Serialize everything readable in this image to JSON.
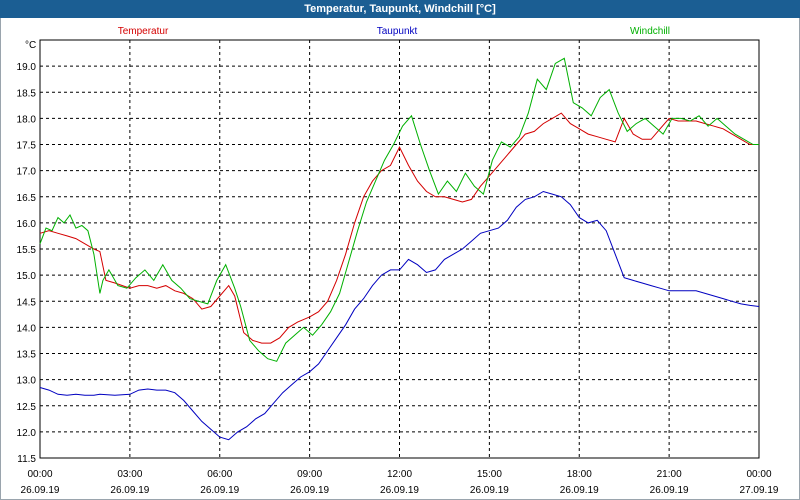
{
  "window": {
    "title": "Temperatur, Taupunkt, Windchill [°C]"
  },
  "chart_data": {
    "type": "line",
    "title": "Temperatur, Taupunkt, Windchill [°C]",
    "ylabel": "°C",
    "xlabel": "",
    "ylim": [
      11.5,
      19.5
    ],
    "xlim": [
      0,
      24
    ],
    "grid": true,
    "x_ticks": [
      {
        "time": "00:00",
        "date": "26.09.19"
      },
      {
        "time": "03:00",
        "date": "26.09.19"
      },
      {
        "time": "06:00",
        "date": "26.09.19"
      },
      {
        "time": "09:00",
        "date": "26.09.19"
      },
      {
        "time": "12:00",
        "date": "26.09.19"
      },
      {
        "time": "15:00",
        "date": "26.09.19"
      },
      {
        "time": "18:00",
        "date": "26.09.19"
      },
      {
        "time": "21:00",
        "date": "26.09.19"
      },
      {
        "time": "00:00",
        "date": "27.09.19"
      }
    ],
    "y_ticks": [
      "19.0",
      "18.5",
      "18.0",
      "17.5",
      "17.0",
      "16.5",
      "16.0",
      "15.5",
      "15.0",
      "14.5",
      "14.0",
      "13.5",
      "13.0",
      "12.5",
      "12.0",
      "11.5"
    ],
    "series": [
      {
        "name": "Temperatur",
        "color": "#d40000",
        "x": [
          0,
          0.3,
          0.6,
          0.9,
          1.2,
          1.5,
          1.8,
          2.0,
          2.2,
          2.5,
          3.0,
          3.3,
          3.6,
          3.9,
          4.2,
          4.5,
          4.8,
          5.1,
          5.4,
          5.7,
          6.0,
          6.3,
          6.5,
          6.8,
          7.1,
          7.4,
          7.7,
          8.0,
          8.3,
          8.6,
          9.0,
          9.3,
          9.6,
          9.9,
          10.2,
          10.5,
          10.8,
          11.1,
          11.4,
          11.7,
          12.0,
          12.3,
          12.6,
          12.9,
          13.2,
          13.5,
          13.8,
          14.1,
          14.4,
          14.7,
          15.0,
          15.3,
          15.6,
          15.9,
          16.2,
          16.5,
          16.8,
          17.1,
          17.4,
          17.7,
          18.0,
          18.3,
          18.6,
          18.9,
          19.2,
          19.5,
          19.8,
          20.1,
          20.4,
          20.7,
          21.0,
          21.3,
          21.6,
          21.9,
          22.2,
          22.5,
          22.8,
          23.1,
          23.4,
          23.7,
          24.0
        ],
        "y": [
          15.8,
          15.85,
          15.8,
          15.75,
          15.7,
          15.6,
          15.5,
          15.45,
          14.9,
          14.85,
          14.75,
          14.8,
          14.8,
          14.75,
          14.8,
          14.7,
          14.65,
          14.55,
          14.35,
          14.4,
          14.6,
          14.8,
          14.6,
          13.9,
          13.75,
          13.7,
          13.7,
          13.8,
          14.0,
          14.1,
          14.2,
          14.3,
          14.5,
          14.9,
          15.4,
          16.0,
          16.5,
          16.8,
          17.0,
          17.1,
          17.45,
          17.1,
          16.8,
          16.6,
          16.5,
          16.5,
          16.45,
          16.4,
          16.45,
          16.7,
          16.9,
          17.1,
          17.3,
          17.5,
          17.7,
          17.75,
          17.9,
          18.0,
          18.1,
          17.9,
          17.8,
          17.7,
          17.65,
          17.6,
          17.55,
          18.0,
          17.7,
          17.6,
          17.6,
          17.8,
          18.0,
          17.95,
          17.95,
          17.95,
          17.9,
          17.85,
          17.8,
          17.7,
          17.6,
          17.5,
          17.5
        ]
      },
      {
        "name": "Taupunkt",
        "color": "#0000c0",
        "x": [
          0,
          0.3,
          0.6,
          0.9,
          1.2,
          1.5,
          1.8,
          2.0,
          2.5,
          3.0,
          3.3,
          3.6,
          3.9,
          4.2,
          4.5,
          4.8,
          5.1,
          5.4,
          5.7,
          6.0,
          6.3,
          6.6,
          6.9,
          7.2,
          7.5,
          7.8,
          8.1,
          8.4,
          8.7,
          9.0,
          9.3,
          9.6,
          9.9,
          10.2,
          10.5,
          10.8,
          11.1,
          11.4,
          11.7,
          12.0,
          12.3,
          12.6,
          12.9,
          13.2,
          13.5,
          13.8,
          14.1,
          14.4,
          14.7,
          15.0,
          15.3,
          15.6,
          15.9,
          16.2,
          16.5,
          16.8,
          17.1,
          17.4,
          17.7,
          18.0,
          18.3,
          18.6,
          18.9,
          19.2,
          19.5,
          19.8,
          20.1,
          20.4,
          20.7,
          21.0,
          21.3,
          21.6,
          21.9,
          22.2,
          22.5,
          22.8,
          23.1,
          23.4,
          23.7,
          24.0
        ],
        "y": [
          12.85,
          12.8,
          12.72,
          12.7,
          12.72,
          12.7,
          12.7,
          12.72,
          12.7,
          12.72,
          12.8,
          12.82,
          12.8,
          12.8,
          12.75,
          12.6,
          12.4,
          12.2,
          12.05,
          11.9,
          11.85,
          12.0,
          12.1,
          12.25,
          12.35,
          12.55,
          12.75,
          12.9,
          13.05,
          13.15,
          13.3,
          13.55,
          13.8,
          14.05,
          14.35,
          14.55,
          14.8,
          15.0,
          15.1,
          15.1,
          15.3,
          15.2,
          15.05,
          15.1,
          15.3,
          15.4,
          15.5,
          15.65,
          15.8,
          15.85,
          15.9,
          16.05,
          16.3,
          16.45,
          16.5,
          16.6,
          16.55,
          16.5,
          16.35,
          16.1,
          16.0,
          16.05,
          15.85,
          15.4,
          14.95,
          14.9,
          14.85,
          14.8,
          14.75,
          14.7,
          14.7,
          14.7,
          14.7,
          14.65,
          14.6,
          14.55,
          14.5,
          14.45,
          14.42,
          14.4
        ]
      },
      {
        "name": "Windchill",
        "color": "#00b000",
        "x": [
          0,
          0.2,
          0.4,
          0.6,
          0.8,
          1.0,
          1.2,
          1.4,
          1.6,
          1.8,
          2.0,
          2.1,
          2.3,
          2.6,
          2.9,
          3.2,
          3.5,
          3.8,
          4.1,
          4.4,
          4.7,
          5.0,
          5.3,
          5.6,
          5.9,
          6.2,
          6.5,
          6.7,
          7.0,
          7.3,
          7.6,
          7.9,
          8.2,
          8.5,
          8.8,
          9.1,
          9.4,
          9.7,
          10.0,
          10.3,
          10.6,
          10.9,
          11.2,
          11.5,
          11.8,
          12.1,
          12.4,
          12.7,
          13.0,
          13.3,
          13.6,
          13.9,
          14.2,
          14.5,
          14.8,
          15.1,
          15.4,
          15.7,
          16.0,
          16.3,
          16.6,
          16.9,
          17.2,
          17.5,
          17.8,
          18.1,
          18.4,
          18.7,
          19.0,
          19.3,
          19.6,
          19.9,
          20.2,
          20.5,
          20.8,
          21.1,
          21.4,
          21.7,
          22.0,
          22.3,
          22.6,
          22.9,
          23.2,
          23.5,
          23.8,
          24.0
        ],
        "y": [
          15.6,
          15.9,
          15.85,
          16.1,
          16.0,
          16.15,
          15.9,
          15.95,
          15.85,
          15.4,
          14.65,
          14.9,
          15.1,
          14.8,
          14.75,
          14.95,
          15.1,
          14.9,
          15.2,
          14.9,
          14.75,
          14.55,
          14.5,
          14.45,
          14.9,
          15.2,
          14.75,
          14.4,
          13.75,
          13.55,
          13.4,
          13.35,
          13.7,
          13.85,
          14.0,
          13.85,
          14.05,
          14.3,
          14.65,
          15.25,
          15.85,
          16.4,
          16.8,
          17.2,
          17.5,
          17.85,
          18.05,
          17.5,
          17.0,
          16.55,
          16.8,
          16.6,
          16.95,
          16.7,
          16.55,
          17.2,
          17.55,
          17.45,
          17.65,
          18.1,
          18.75,
          18.55,
          19.05,
          19.15,
          18.3,
          18.2,
          18.05,
          18.4,
          18.55,
          18.1,
          17.75,
          17.9,
          18.0,
          17.85,
          17.7,
          18.0,
          18.0,
          17.95,
          18.05,
          17.85,
          18.0,
          17.85,
          17.7,
          17.6,
          17.5,
          17.5
        ]
      }
    ]
  }
}
